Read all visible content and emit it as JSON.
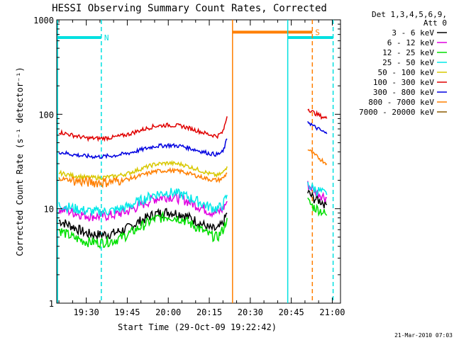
{
  "chart_data": {
    "type": "line",
    "title": "HESSI Observing Summary Count Rates, Corrected",
    "xlabel": "Start Time (29-Oct-09 19:22:42)",
    "ylabel": "Corrected Count Rate (s⁻¹ detector⁻¹)",
    "yscale": "log",
    "ylim": [
      1,
      1000
    ],
    "xlim_minutes": [
      19.2,
      123.0
    ],
    "x_ticks": [
      {
        "label": "19:30",
        "minutes": 30
      },
      {
        "label": "19:45",
        "minutes": 45
      },
      {
        "label": "20:00",
        "minutes": 60
      },
      {
        "label": "20:15",
        "minutes": 75
      },
      {
        "label": "20:30",
        "minutes": 90
      },
      {
        "label": "20:45",
        "minutes": 105
      },
      {
        "label": "21:00",
        "minutes": 120
      }
    ],
    "y_ticks": [
      {
        "label": "1",
        "value": 1
      },
      {
        "label": "10",
        "value": 10
      },
      {
        "label": "100",
        "value": 100
      },
      {
        "label": "1000",
        "value": 1000
      }
    ],
    "legend_header": [
      "Det 1,3,4,5,6,9,",
      "Att 0"
    ],
    "legend_placement": "right",
    "grid": false,
    "series": [
      {
        "name": "3 - 6 keV",
        "color": "#000000",
        "x": [
          20,
          25,
          30,
          35,
          40,
          45,
          50,
          55,
          60,
          65,
          70,
          75,
          78,
          80,
          81.5,
          111,
          113,
          116,
          118
        ],
        "y": [
          7.5,
          6.5,
          5.5,
          5.3,
          5.5,
          6.2,
          7.5,
          8.8,
          9.3,
          8.8,
          7.5,
          6.2,
          6,
          7,
          9,
          15,
          13,
          12,
          11
        ]
      },
      {
        "name": "6 - 12 keV",
        "color": "#e000e0",
        "x": [
          20,
          25,
          30,
          35,
          40,
          45,
          50,
          55,
          60,
          65,
          70,
          75,
          78,
          80,
          81.5,
          111,
          113,
          116,
          118
        ],
        "y": [
          10,
          9.2,
          8.5,
          8.3,
          8.6,
          9.4,
          11,
          12.8,
          13.6,
          12.8,
          11,
          9.4,
          9,
          10,
          12,
          18,
          16,
          14,
          13
        ]
      },
      {
        "name": "12 - 25 keV",
        "color": "#00e000",
        "x": [
          20,
          25,
          30,
          35,
          40,
          45,
          50,
          55,
          60,
          65,
          70,
          75,
          78,
          80,
          81.5,
          111,
          113,
          116,
          118
        ],
        "y": [
          6,
          5,
          4.5,
          4.4,
          4.6,
          5.3,
          6.5,
          7.8,
          8.3,
          7.8,
          6.5,
          5.3,
          5,
          6,
          8,
          12,
          10.5,
          9.5,
          8.5
        ]
      },
      {
        "name": "25 - 50 keV",
        "color": "#00e8e8",
        "x": [
          20,
          25,
          30,
          35,
          40,
          45,
          50,
          55,
          60,
          65,
          70,
          75,
          78,
          80,
          81.5,
          111,
          113,
          116,
          118
        ],
        "y": [
          11,
          10.2,
          9.5,
          9.3,
          9.6,
          10.5,
          12.3,
          14.2,
          15,
          14.2,
          12.3,
          10.5,
          10,
          11,
          14,
          18,
          16.5,
          15,
          14
        ]
      },
      {
        "name": "50 - 100 keV",
        "color": "#d8c800",
        "x": [
          20,
          25,
          30,
          35,
          40,
          45,
          50,
          55,
          60,
          65,
          70,
          75,
          78,
          80,
          81.5
        ],
        "y": [
          24,
          22.5,
          21.5,
          21.3,
          22,
          23.5,
          26.5,
          29.5,
          30.5,
          29.5,
          26.5,
          23.5,
          22.5,
          24,
          28
        ]
      },
      {
        "name": "100 - 300 keV",
        "color": "#e00000",
        "x": [
          20,
          25,
          30,
          35,
          40,
          45,
          50,
          55,
          60,
          65,
          70,
          75,
          78,
          80,
          81.5,
          111,
          113,
          116,
          118
        ],
        "y": [
          65,
          60,
          56,
          55.5,
          57,
          61,
          68,
          75,
          77,
          75,
          68,
          61,
          59,
          65,
          95,
          115,
          105,
          95,
          90
        ]
      },
      {
        "name": "300 - 800 keV",
        "color": "#0000e0",
        "x": [
          20,
          25,
          30,
          35,
          40,
          45,
          50,
          55,
          60,
          65,
          70,
          75,
          78,
          80,
          81.5,
          111,
          113,
          116,
          118
        ],
        "y": [
          40,
          37.5,
          36,
          35.5,
          36.5,
          38.5,
          42,
          46,
          47,
          46,
          42,
          38.5,
          37.5,
          40,
          55,
          85,
          75,
          67,
          62
        ]
      },
      {
        "name": "800 - 7000 keV",
        "color": "#ff7f00",
        "x": [
          20,
          25,
          30,
          35,
          40,
          45,
          50,
          55,
          60,
          65,
          70,
          75,
          78,
          80,
          81.5,
          111,
          113,
          116,
          118
        ],
        "y": [
          21,
          20,
          19.2,
          19,
          19.5,
          20.5,
          22.5,
          24.8,
          25.5,
          24.8,
          22.5,
          20.5,
          20,
          21,
          24,
          43,
          38,
          33,
          30
        ]
      },
      {
        "name": "7000 - 20000 keV",
        "color": "#8b5a00",
        "x": [],
        "y": []
      }
    ],
    "annotations": [
      {
        "type": "bar",
        "label": "N",
        "color": "#00e0e0",
        "x_start": 19.5,
        "x_end": 35.5,
        "y": 650
      },
      {
        "type": "bar",
        "label": "",
        "color": "#00e0e0",
        "x_start": 103.7,
        "x_end": 120.3,
        "y": 650
      },
      {
        "type": "bar",
        "label": "S",
        "color": "#ff7f00",
        "x_start": 83.5,
        "x_end": 112.7,
        "y": 740
      },
      {
        "type": "vline",
        "style": "solid",
        "color": "#00e0e0",
        "x": 19.5
      },
      {
        "type": "vline",
        "style": "dashed",
        "color": "#00e0e0",
        "x": 35.5
      },
      {
        "type": "vline",
        "style": "solid",
        "color": "#ff7f00",
        "x": 83.5
      },
      {
        "type": "vline",
        "style": "solid",
        "color": "#00e0e0",
        "x": 103.7
      },
      {
        "type": "vline",
        "style": "dashed",
        "color": "#ff7f00",
        "x": 112.7
      },
      {
        "type": "vline",
        "style": "dashed",
        "color": "#00e0e0",
        "x": 120.3
      }
    ]
  },
  "footer": {
    "timestamp": "21-Mar-2010 07:03"
  }
}
